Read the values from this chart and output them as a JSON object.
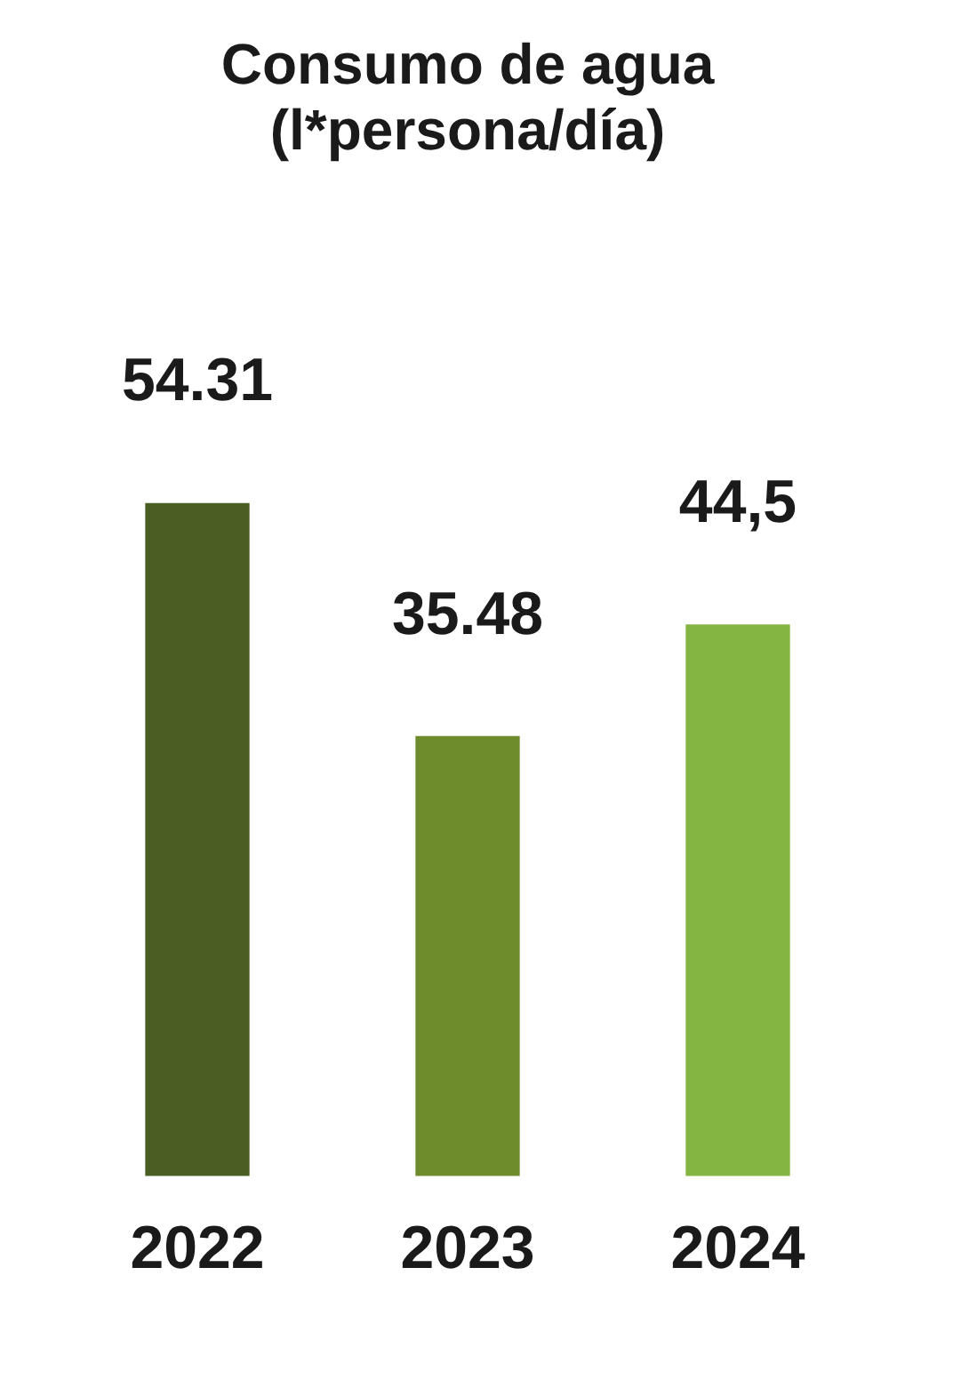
{
  "chart_data": {
    "type": "bar",
    "title": "Consumo de agua\n(l*persona/día)",
    "categories": [
      "2022",
      "2023",
      "2024"
    ],
    "values": [
      54.31,
      35.48,
      44.5
    ],
    "colors": [
      "#4a5e23",
      "#6e8c2c",
      "#84b543"
    ],
    "value_labels": [
      "54.31",
      "35.48",
      "44,5"
    ],
    "grid": false,
    "legend": false
  }
}
